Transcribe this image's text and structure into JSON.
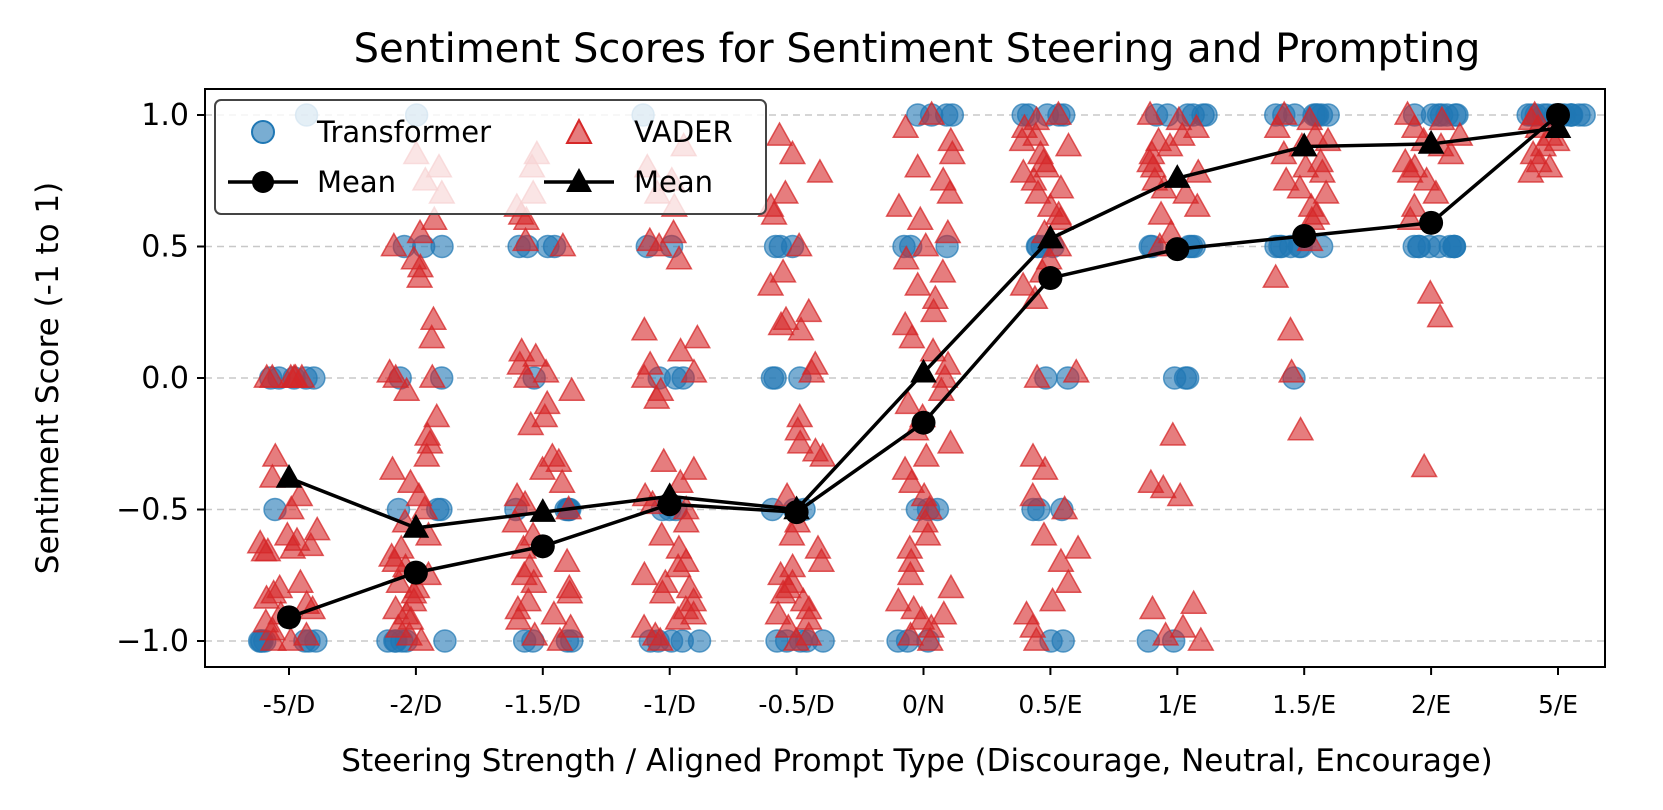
{
  "chart_data": {
    "type": "scatter",
    "title": "Sentiment Scores for Sentiment Steering and Prompting",
    "xlabel": "Steering Strength / Aligned Prompt Type (Discourage, Neutral, Encourage)",
    "ylabel": "Sentiment Score (-1 to 1)",
    "categories": [
      "-5/D",
      "-2/D",
      "-1.5/D",
      "-1/D",
      "-0.5/D",
      "0/N",
      "0.5/E",
      "1/E",
      "1.5/E",
      "2/E",
      "5/E"
    ],
    "ylim": [
      -1.1,
      1.1
    ],
    "yticks": [
      -1.0,
      -0.5,
      0.0,
      0.5,
      1.0
    ],
    "ytick_labels": [
      "−1.0",
      "−0.5",
      "0.0",
      "0.5",
      "1.0"
    ],
    "grid": "horizontal dashed",
    "legend_position": "top-left",
    "legend": [
      {
        "label": "Transformer",
        "marker": "circle"
      },
      {
        "label": "VADER",
        "marker": "triangle"
      },
      {
        "label": "Mean",
        "marker": "circle-line"
      },
      {
        "label": "Mean",
        "marker": "triangle-line"
      }
    ],
    "colors": {
      "transformer": "#1f77b4",
      "vader": "#d62728",
      "mean": "#000000",
      "grid": "#c8c8c8"
    },
    "series": [
      {
        "name": "Transformer Mean",
        "marker": "circle",
        "values": [
          -0.91,
          -0.74,
          -0.64,
          -0.48,
          -0.51,
          -0.17,
          0.38,
          0.49,
          0.54,
          0.59,
          1.0
        ]
      },
      {
        "name": "VADER Mean",
        "marker": "triangle",
        "values": [
          -0.38,
          -0.57,
          -0.51,
          -0.45,
          -0.5,
          0.02,
          0.53,
          0.76,
          0.88,
          0.89,
          0.95
        ]
      }
    ],
    "transformer_points": [
      [
        -1,
        -1,
        -1,
        -1,
        -1,
        -1,
        -1,
        0,
        0,
        0,
        0,
        0,
        -0.5,
        1
      ],
      [
        -1,
        -1,
        -1,
        -1,
        -1,
        -1,
        -0.5,
        -0.5,
        -0.5,
        0,
        0,
        0.5,
        0.5,
        0.5,
        1
      ],
      [
        -1,
        -1,
        -1,
        -1,
        -0.5,
        -0.5,
        -0.5,
        -0.5,
        -0.5,
        0,
        0.5,
        0.5,
        0.5,
        0.5
      ],
      [
        -1,
        -1,
        -1,
        -1,
        -1,
        -0.5,
        -0.5,
        -0.5,
        0,
        0,
        0,
        0.5,
        0.5,
        1
      ],
      [
        -1,
        -1,
        -1,
        -1,
        -1,
        -0.5,
        -0.5,
        -0.5,
        0,
        0,
        0,
        0.5,
        0.5,
        0.5
      ],
      [
        -1,
        -1,
        -1,
        -0.5,
        -0.5,
        -0.5,
        0.5,
        0.5,
        0.5,
        1,
        1,
        1,
        1
      ],
      [
        -1,
        -1,
        -0.5,
        -0.5,
        -0.5,
        0,
        0,
        0.5,
        0.5,
        0.5,
        0.5,
        1,
        1,
        1,
        1,
        1
      ],
      [
        -1,
        -1,
        0,
        0,
        0,
        0.5,
        0.5,
        0.5,
        0.5,
        0.5,
        1,
        1,
        1,
        1,
        1,
        1
      ],
      [
        0,
        0.5,
        0.5,
        0.5,
        0.5,
        0.5,
        0.5,
        0.5,
        1,
        1,
        1,
        1,
        1,
        1,
        1,
        1
      ],
      [
        0.5,
        0.5,
        0.5,
        0.5,
        0.5,
        0.5,
        0.5,
        0.5,
        0.5,
        1,
        1,
        1,
        1,
        1,
        1,
        1
      ],
      [
        1,
        1,
        1,
        1,
        1,
        1,
        1,
        1,
        1,
        1,
        1,
        1,
        1,
        1
      ]
    ],
    "vader_points": [
      [
        -1,
        -1,
        -0.98,
        -0.96,
        -0.93,
        -0.9,
        -0.88,
        -0.86,
        -0.84,
        -0.82,
        -0.8,
        -0.78,
        -0.66,
        -0.66,
        -0.65,
        -0.64,
        -0.63,
        -0.62,
        -0.6,
        -0.58,
        -0.5,
        -0.45,
        -0.38,
        -0.3,
        0,
        0,
        0,
        0,
        0,
        0
      ],
      [
        -1,
        -0.98,
        -0.95,
        -0.92,
        -0.9,
        -0.88,
        -0.85,
        -0.82,
        -0.8,
        -0.78,
        -0.75,
        -0.72,
        -0.7,
        -0.68,
        -0.65,
        -0.6,
        -0.55,
        -0.5,
        -0.45,
        -0.4,
        -0.35,
        -0.3,
        -0.25,
        -0.22,
        -0.15,
        -0.05,
        0,
        0,
        0.02,
        0.15,
        0.22,
        0.38,
        0.42,
        0.45,
        0.5,
        0.55,
        0.6,
        0.7,
        0.75,
        0.8,
        0.85
      ],
      [
        -1,
        -0.98,
        -0.95,
        -0.92,
        -0.9,
        -0.88,
        -0.85,
        -0.82,
        -0.8,
        -0.78,
        -0.75,
        -0.72,
        -0.7,
        -0.65,
        -0.6,
        -0.55,
        -0.5,
        -0.48,
        -0.45,
        -0.4,
        -0.35,
        -0.32,
        -0.3,
        -0.18,
        -0.15,
        -0.1,
        -0.05,
        0,
        0.02,
        0.05,
        0.08,
        0.1,
        0.5,
        0.52,
        0.6,
        0.62,
        0.65,
        0.7,
        0.8,
        0.85
      ],
      [
        -1,
        -0.98,
        -0.95,
        -0.92,
        -0.9,
        -0.88,
        -0.85,
        -0.82,
        -0.8,
        -0.78,
        -0.75,
        -0.72,
        -0.7,
        -0.65,
        -0.6,
        -0.55,
        -0.5,
        -0.48,
        -0.45,
        -0.4,
        -0.35,
        -0.32,
        -0.08,
        -0.05,
        0,
        0.02,
        0.05,
        0.1,
        0.15,
        0.18,
        0.45,
        0.5,
        0.52,
        0.55,
        0.65,
        0.7,
        0.75,
        0.8,
        0.88
      ],
      [
        -1,
        -0.98,
        -0.95,
        -0.92,
        -0.9,
        -0.88,
        -0.85,
        -0.82,
        -0.8,
        -0.78,
        -0.75,
        -0.72,
        -0.7,
        -0.65,
        -0.6,
        -0.55,
        -0.45,
        -0.3,
        -0.28,
        -0.25,
        -0.2,
        -0.15,
        0.02,
        0.05,
        0.18,
        0.2,
        0.22,
        0.25,
        0.35,
        0.4,
        0.5,
        0.62,
        0.65,
        0.7,
        0.78,
        0.85,
        0.92
      ],
      [
        -1,
        -0.98,
        -0.95,
        -0.92,
        -0.9,
        -0.88,
        -0.85,
        -0.8,
        -0.75,
        -0.7,
        -0.65,
        -0.6,
        -0.55,
        -0.5,
        -0.45,
        -0.4,
        -0.35,
        -0.3,
        -0.25,
        -0.2,
        -0.15,
        -0.1,
        -0.05,
        0,
        0.05,
        0.1,
        0.15,
        0.2,
        0.25,
        0.3,
        0.35,
        0.4,
        0.45,
        0.5,
        0.55,
        0.6,
        0.65,
        0.7,
        0.75,
        0.8,
        0.85,
        0.9,
        0.95,
        1
      ],
      [
        -1,
        -0.95,
        -0.9,
        -0.85,
        -0.78,
        -0.7,
        -0.65,
        -0.6,
        -0.5,
        -0.45,
        -0.35,
        -0.3,
        0,
        0.02,
        0.3,
        0.35,
        0.4,
        0.45,
        0.5,
        0.55,
        0.6,
        0.62,
        0.65,
        0.7,
        0.72,
        0.75,
        0.78,
        0.8,
        0.82,
        0.85,
        0.88,
        0.9,
        0.92,
        0.95,
        0.98,
        1
      ],
      [
        -1,
        -0.98,
        -0.95,
        -0.88,
        -0.86,
        -0.45,
        -0.42,
        -0.4,
        -0.22,
        0.5,
        0.55,
        0.62,
        0.65,
        0.7,
        0.72,
        0.75,
        0.78,
        0.8,
        0.82,
        0.85,
        0.88,
        0.9,
        0.92,
        0.95,
        0.98,
        1
      ],
      [
        -0.2,
        0.02,
        0.18,
        0.38,
        0.52,
        0.6,
        0.62,
        0.65,
        0.7,
        0.72,
        0.75,
        0.78,
        0.8,
        0.82,
        0.85,
        0.88,
        0.9,
        0.92,
        0.95,
        0.98,
        1
      ],
      [
        -0.34,
        0.23,
        0.32,
        0.6,
        0.65,
        0.7,
        0.75,
        0.78,
        0.8,
        0.82,
        0.85,
        0.88,
        0.9,
        0.92,
        0.95,
        0.98,
        1
      ],
      [
        0.78,
        0.8,
        0.82,
        0.85,
        0.88,
        0.9,
        0.92,
        0.95,
        0.98,
        1
      ]
    ]
  }
}
